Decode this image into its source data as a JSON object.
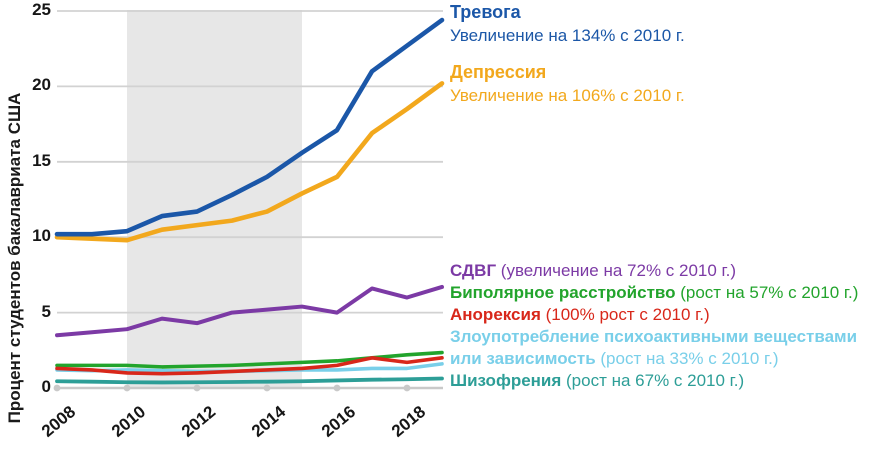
{
  "yaxis": {
    "title": "Процент студентов бакалавриата США",
    "ticks": [
      0,
      5,
      10,
      15,
      20,
      25
    ]
  },
  "xaxis": {
    "ticks": [
      2008,
      2010,
      2012,
      2014,
      2016,
      2018
    ]
  },
  "colors": {
    "anxiety": "#1b57a8",
    "depression": "#f2a81d",
    "adhd": "#7c3aa5",
    "bipolar": "#22a42c",
    "anorexia": "#d8271a",
    "substance": "#79cfe9",
    "schizophrenia": "#2d9e97",
    "shaded_band": "#e7e7e7",
    "gridline": "#d2d2d2",
    "zero_line": "#c9c9c9"
  },
  "chart_data": {
    "type": "line",
    "title": "",
    "xlabel": "",
    "ylabel": "Процент студентов бакалавриата США",
    "ylim": [
      0,
      25
    ],
    "xlim": [
      2008,
      2019
    ],
    "grid": "horizontal",
    "legend_position": "right",
    "shaded_region": {
      "x_start": 2010,
      "x_end": 2015,
      "color": "#e7e7e7"
    },
    "x": [
      2008,
      2009,
      2010,
      2011,
      2012,
      2013,
      2014,
      2015,
      2016,
      2017,
      2018,
      2019
    ],
    "series": [
      {
        "name": "Тревога",
        "color": "#1b57a8",
        "annotation": "Увеличение на 134% с 2010 г.",
        "values": [
          10.2,
          10.2,
          10.4,
          11.4,
          11.7,
          12.8,
          14.0,
          15.6,
          17.1,
          21.0,
          22.7,
          24.4
        ]
      },
      {
        "name": "Депрессия",
        "color": "#f2a81d",
        "annotation": "Увеличение на 106% с 2010 г.",
        "values": [
          10.0,
          9.9,
          9.8,
          10.5,
          10.8,
          11.1,
          11.7,
          12.9,
          14.0,
          16.9,
          18.5,
          20.2
        ]
      },
      {
        "name": "СДВГ",
        "color": "#7c3aa5",
        "annotation": "увеличение на 72% с 2010 г.",
        "values": [
          3.5,
          3.7,
          3.9,
          4.6,
          4.3,
          5.0,
          5.2,
          5.4,
          5.0,
          6.6,
          6.0,
          6.7
        ]
      },
      {
        "name": "Биполярное расстройство",
        "color": "#22a42c",
        "annotation": "рост на 57% с 2010 г.",
        "values": [
          1.5,
          1.5,
          1.5,
          1.4,
          1.45,
          1.5,
          1.6,
          1.7,
          1.8,
          2.0,
          2.2,
          2.35
        ]
      },
      {
        "name": "Анорексия",
        "color": "#d8271a",
        "annotation": "100% рост с 2010 г.",
        "values": [
          1.3,
          1.2,
          1.0,
          0.95,
          1.0,
          1.1,
          1.2,
          1.3,
          1.5,
          2.0,
          1.7,
          2.0
        ]
      },
      {
        "name": "Злоупотребление психоактивными веществами или зависимость",
        "color": "#79cfe9",
        "annotation": "рост на 33% с 2010 г.",
        "values": [
          1.2,
          1.15,
          1.2,
          1.15,
          1.1,
          1.1,
          1.15,
          1.2,
          1.2,
          1.3,
          1.3,
          1.6
        ]
      },
      {
        "name": "Шизофрения",
        "color": "#2d9e97",
        "annotation": "рост на 67% с 2010 г.",
        "values": [
          0.45,
          0.42,
          0.38,
          0.37,
          0.38,
          0.4,
          0.42,
          0.45,
          0.5,
          0.55,
          0.58,
          0.63
        ]
      }
    ]
  },
  "annotations": {
    "anxiety": {
      "title": "Тревога",
      "subtitle": "Увеличение на 134% с 2010 г."
    },
    "depression": {
      "title": "Депрессия",
      "subtitle": "Увеличение на 106% с 2010 г."
    },
    "rows": [
      {
        "bold": "СДВГ",
        "rest": " (увеличение на 72% с 2010 г.)"
      },
      {
        "bold": "Биполярное расстройство",
        "rest": " (рост на 57% с 2010 г.)"
      },
      {
        "bold": "Анорексия",
        "rest": " (100% рост с 2010 г.)"
      },
      {
        "bold": "Злоупотребление психоактивными веществами",
        "rest": ""
      },
      {
        "bold": "или зависимость",
        "rest": " (рост на 33% с 2010 г.)"
      },
      {
        "bold": "Шизофрения",
        "rest": " (рост на 67% с 2010 г.)"
      }
    ],
    "row_colors": [
      "#7c3aa5",
      "#22a42c",
      "#d8271a",
      "#79cfe9",
      "#79cfe9",
      "#2d9e97"
    ]
  }
}
